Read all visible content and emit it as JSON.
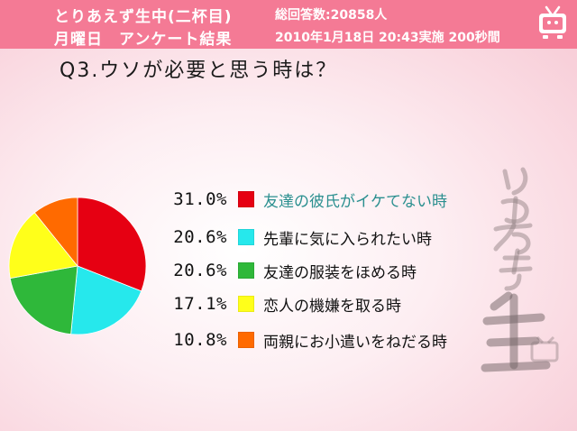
{
  "header": {
    "title_line1": "とりあえず生中(二杯目)",
    "title_line2": "月曜日　アンケート結果",
    "stat_line1": "総回答数:20858人",
    "stat_line2": "2010年1月18日 20:43実施 200秒間"
  },
  "question": "Q3.ウソが必要と思う時は？",
  "chart_data": {
    "type": "pie",
    "categories": [
      "友達の彼氏がイケてない時",
      "先輩に気に入られたい時",
      "友達の服装をほめる時",
      "恋人の機嫌を取る時",
      "両親にお小遣いをねだる時"
    ],
    "values": [
      31.0,
      20.6,
      20.6,
      17.1,
      10.8
    ],
    "value_labels": [
      "31.0%",
      "20.6%",
      "20.6%",
      "17.1%",
      "10.8%"
    ],
    "colors": [
      "#e60012",
      "#26e8ec",
      "#2fb83a",
      "#ffff1a",
      "#ff6a00"
    ],
    "start": "12 o'clock, clockwise",
    "legend_position": "right"
  }
}
